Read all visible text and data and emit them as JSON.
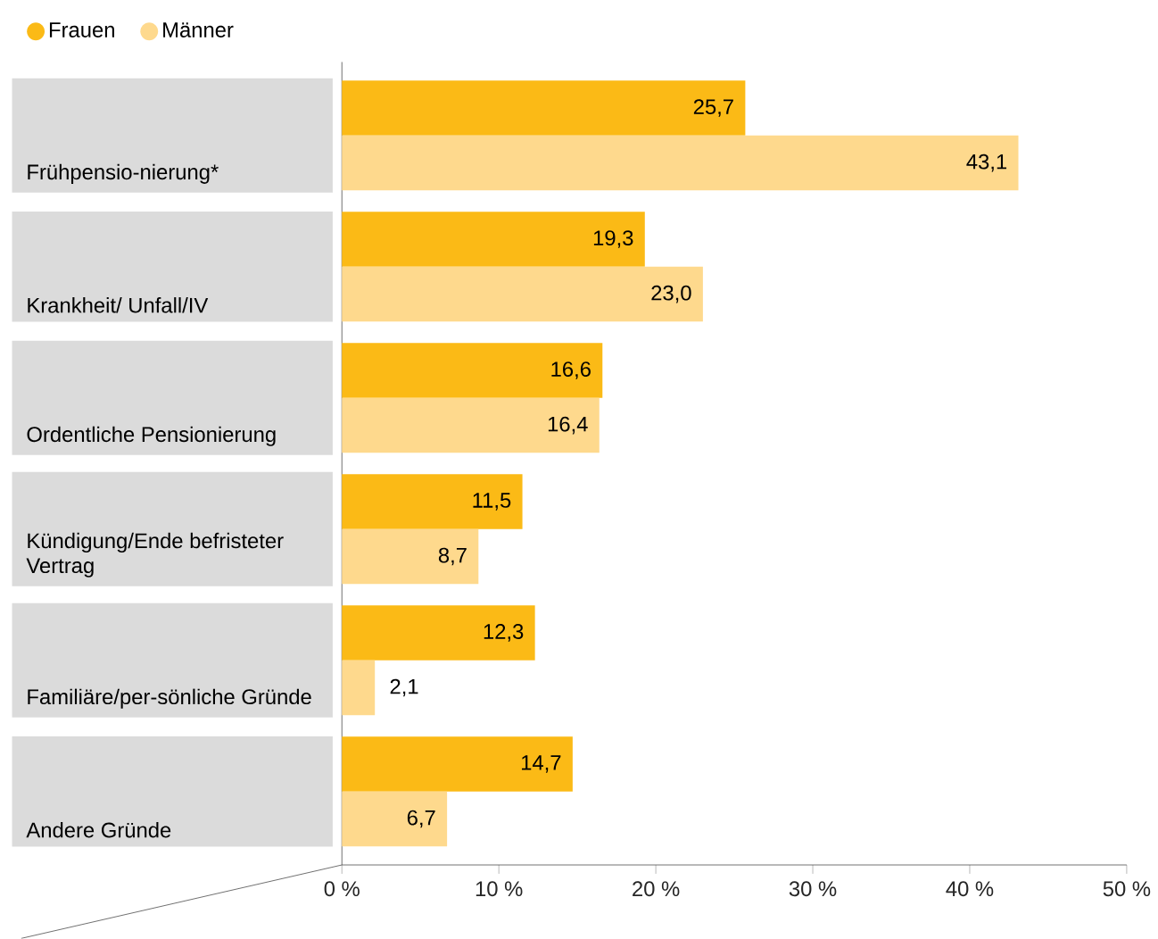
{
  "chart_data": {
    "type": "bar",
    "orientation": "horizontal",
    "categories": [
      "Frühpensio-nierung*",
      "Krankheit/ Unfall/IV",
      "Ordentliche Pensionierung",
      "Kündigung/Ende befristeter Vertrag",
      "Familiäre/per-sönliche Gründe",
      "Andere Gründe"
    ],
    "series": [
      {
        "name": "Frauen",
        "color": "#fbba16",
        "values": [
          25.7,
          19.3,
          16.6,
          11.5,
          12.3,
          14.7
        ],
        "value_labels": [
          "25,7",
          "19,3",
          "16,6",
          "11,5",
          "12,3",
          "14,7"
        ]
      },
      {
        "name": "Männer",
        "color": "#fed98d",
        "values": [
          43.1,
          23.0,
          16.4,
          8.7,
          2.1,
          6.7
        ],
        "value_labels": [
          "43,1",
          "23,0",
          "16,4",
          "8,7",
          "2,1",
          "6,7"
        ]
      }
    ],
    "xlim": [
      0,
      50
    ],
    "xticks": [
      {
        "value": 0,
        "label": "0 %"
      },
      {
        "value": 10,
        "label": "10 %"
      },
      {
        "value": 20,
        "label": "20 %"
      },
      {
        "value": 30,
        "label": "30 %"
      },
      {
        "value": 40,
        "label": "40 %"
      },
      {
        "value": 50,
        "label": "50 %"
      }
    ],
    "grid": false,
    "legend": "top left"
  }
}
